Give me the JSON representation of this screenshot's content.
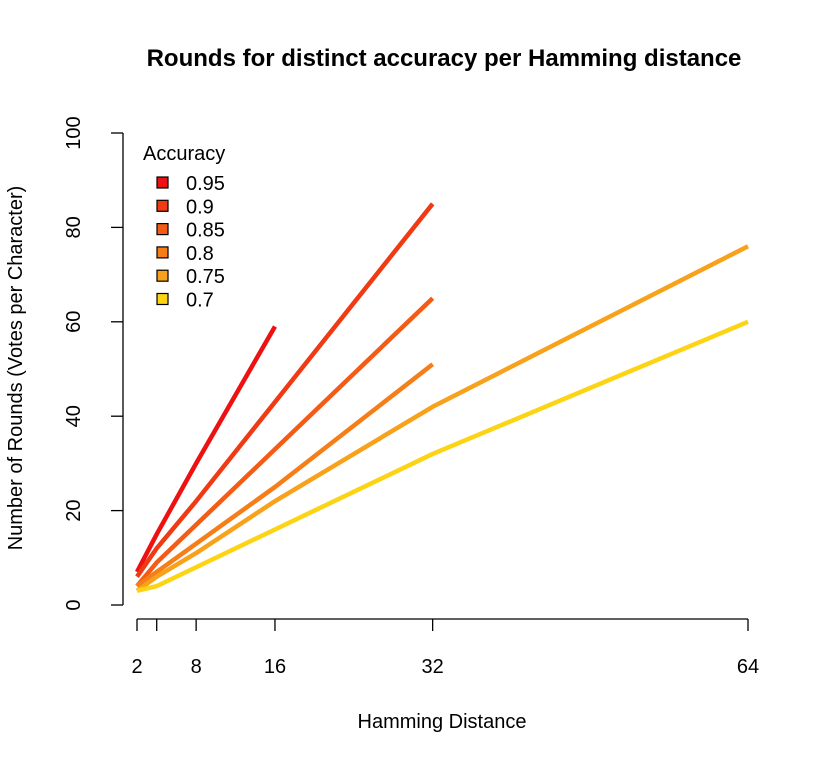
{
  "chart_data": {
    "type": "line",
    "title": "Rounds for distinct accuracy per Hamming distance",
    "xlabel": "Hamming Distance",
    "ylabel": "Number of Rounds (Votes per Character)",
    "xlim": [
      2,
      64
    ],
    "ylim": [
      0,
      100
    ],
    "x_ticks": [
      2,
      4,
      8,
      16,
      32,
      64
    ],
    "x_tick_labels": [
      "2",
      "",
      "8",
      "16",
      "32",
      "64"
    ],
    "y_ticks": [
      0,
      20,
      40,
      60,
      80,
      100
    ],
    "y_tick_labels": [
      "0",
      "20",
      "40",
      "60",
      "80",
      "100"
    ],
    "grid": false,
    "legend": {
      "title": "Accuracy",
      "placement": "top-left"
    },
    "series": [
      {
        "name": "0.95",
        "color": "#ee1111",
        "x": [
          2,
          4,
          8,
          16
        ],
        "y": [
          7,
          15,
          30,
          59
        ]
      },
      {
        "name": "0.9",
        "color": "#f03a14",
        "x": [
          2,
          4,
          8,
          16,
          32
        ],
        "y": [
          6,
          12,
          22,
          43,
          85
        ]
      },
      {
        "name": "0.85",
        "color": "#f45c16",
        "x": [
          2,
          4,
          8,
          16,
          32
        ],
        "y": [
          4,
          9,
          17,
          33,
          65
        ]
      },
      {
        "name": "0.8",
        "color": "#f67e18",
        "x": [
          2,
          4,
          8,
          16,
          32
        ],
        "y": [
          4,
          7,
          13,
          25,
          51
        ]
      },
      {
        "name": "0.75",
        "color": "#f8a11a",
        "x": [
          2,
          4,
          8,
          16,
          32,
          64
        ],
        "y": [
          3,
          6,
          11,
          22,
          42,
          76
        ]
      },
      {
        "name": "0.7",
        "color": "#fcd414",
        "x": [
          2,
          4,
          8,
          16,
          32,
          64
        ],
        "y": [
          3,
          4,
          8,
          16,
          32,
          60
        ]
      }
    ]
  }
}
